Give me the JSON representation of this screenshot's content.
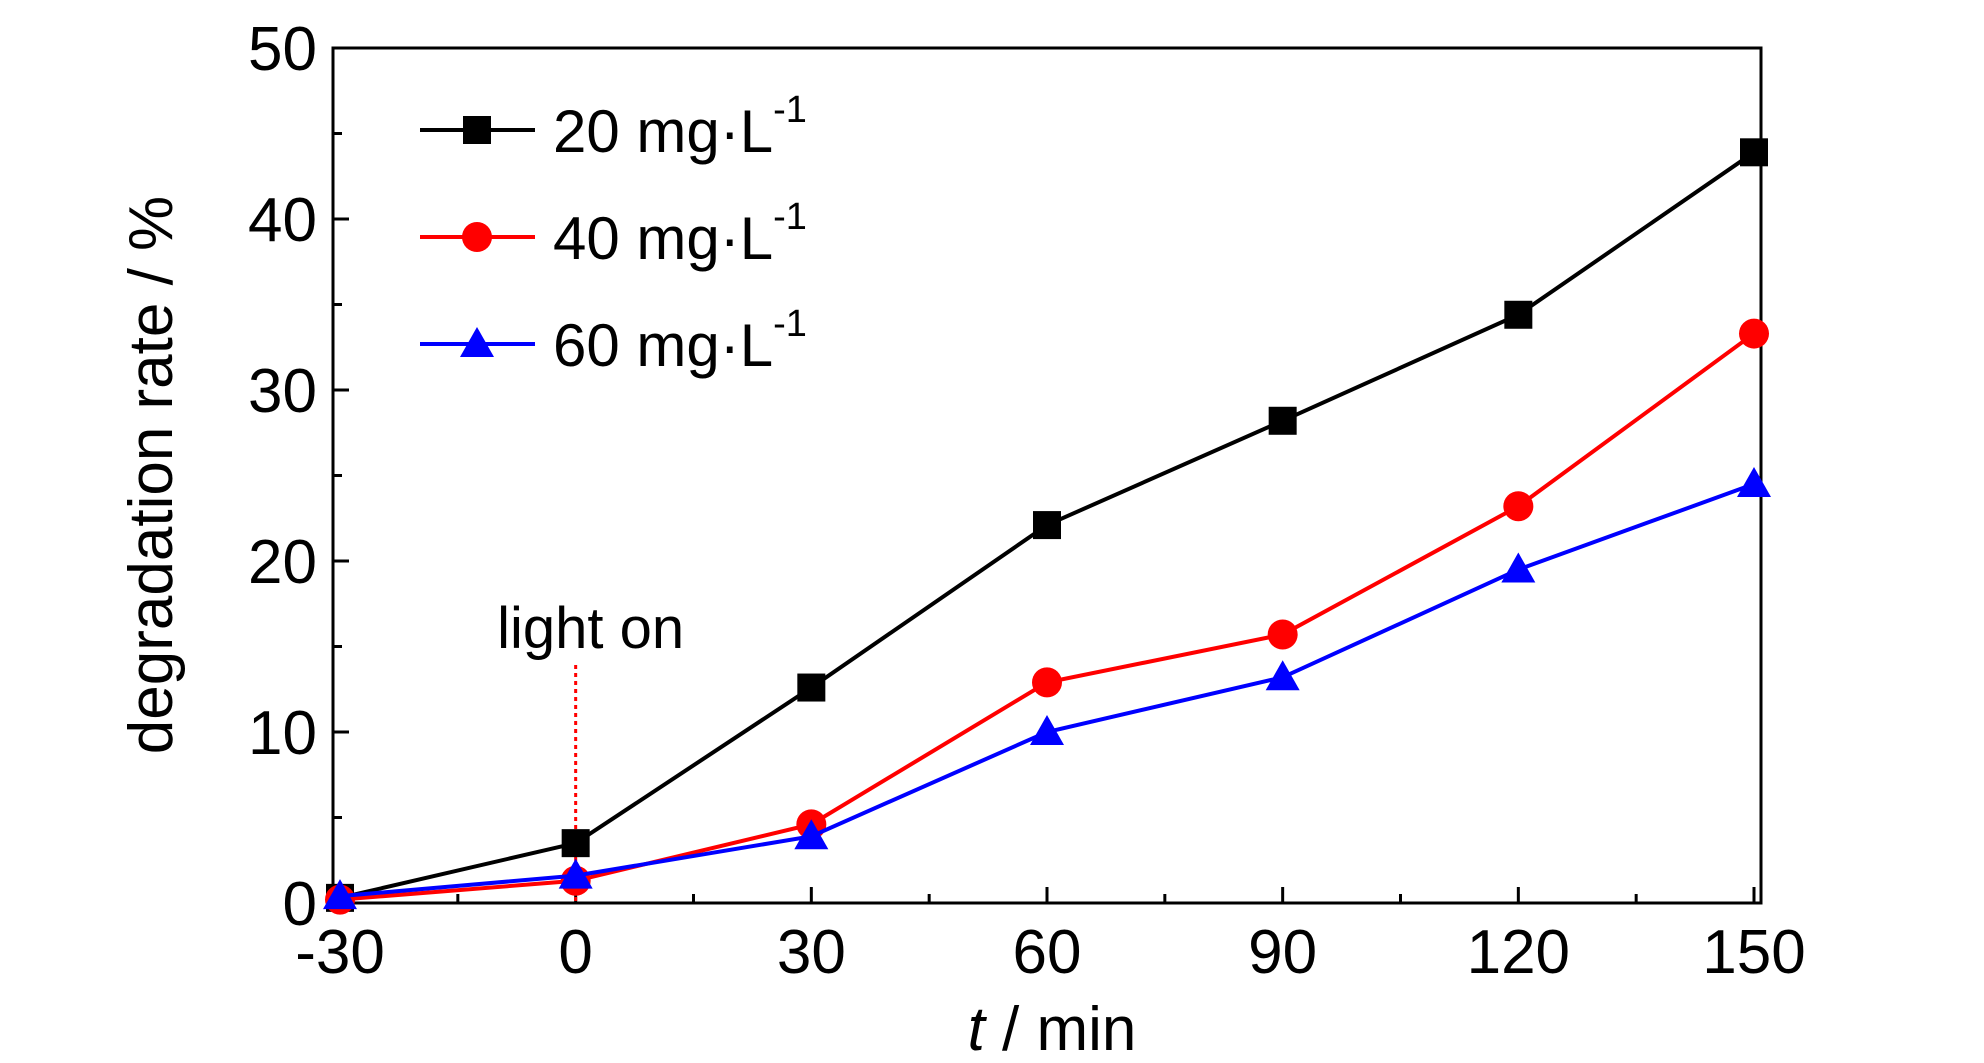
{
  "chart_data": {
    "type": "line",
    "title": "",
    "xlabel": {
      "italic": "t",
      "rest": " / min"
    },
    "ylabel": "degradation rate / %",
    "x": [
      -30,
      0,
      30,
      60,
      90,
      120,
      150
    ],
    "xlim": [
      -30,
      150
    ],
    "ylim": [
      0,
      50
    ],
    "xticks": [
      "-30",
      "0",
      "30",
      "60",
      "90",
      "120",
      "150"
    ],
    "yticks": [
      "0",
      "10",
      "20",
      "30",
      "40",
      "50"
    ],
    "grid": false,
    "legend_position": "top-left",
    "series": [
      {
        "name_main": "20 mg·L",
        "name_sup": "-1",
        "color": "#000000",
        "marker": "square",
        "values": [
          0.3,
          3.5,
          12.6,
          22.1,
          28.2,
          34.4,
          43.9
        ]
      },
      {
        "name_main": "40 mg·L",
        "name_sup": "-1",
        "color": "#ff0000",
        "marker": "circle",
        "values": [
          0.2,
          1.3,
          4.6,
          12.9,
          15.7,
          23.2,
          33.3
        ]
      },
      {
        "name_main": "60 mg·L",
        "name_sup": "-1",
        "color": "#0000ff",
        "marker": "triangle",
        "values": [
          0.4,
          1.6,
          3.9,
          10.0,
          13.2,
          19.5,
          24.5
        ]
      }
    ],
    "annotation": {
      "text": "light on",
      "x": 0,
      "color": "#ff0000"
    }
  }
}
